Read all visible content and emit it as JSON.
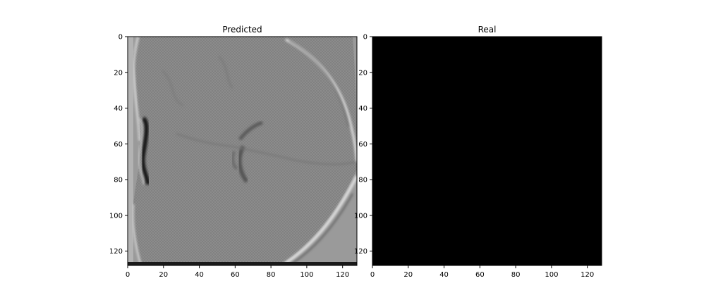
{
  "chart_data": [
    {
      "type": "heatmap",
      "title": "Predicted",
      "xticks": [
        0,
        20,
        40,
        60,
        80,
        100,
        120
      ],
      "yticks": [
        0,
        20,
        40,
        60,
        80,
        100,
        120
      ],
      "xlim": [
        0,
        128
      ],
      "ylim": [
        128,
        0
      ],
      "colormap": "gray",
      "background": "#8a8a8a"
    },
    {
      "type": "heatmap",
      "title": "Real",
      "xticks": [
        0,
        20,
        40,
        60,
        80,
        100,
        120
      ],
      "yticks": [
        0,
        20,
        40,
        60,
        80,
        100,
        120
      ],
      "xlim": [
        0,
        128
      ],
      "ylim": [
        128,
        0
      ],
      "colormap": "gray",
      "background": "#000000"
    }
  ]
}
